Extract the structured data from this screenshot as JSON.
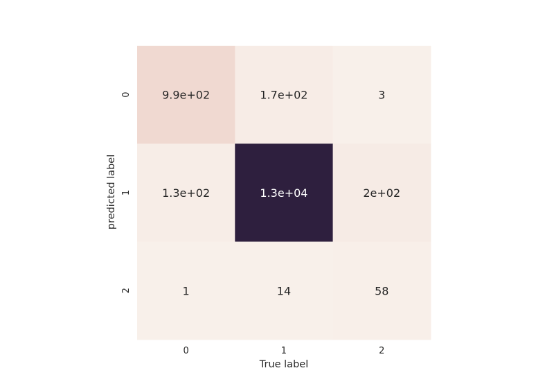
{
  "chart_data": {
    "type": "heatmap",
    "x_categories": [
      "0",
      "1",
      "2"
    ],
    "y_categories": [
      "0",
      "1",
      "2"
    ],
    "xlabel": "True label",
    "ylabel": "predicted label",
    "values": [
      [
        990,
        170,
        3
      ],
      [
        130,
        13000,
        200
      ],
      [
        1,
        14,
        58
      ]
    ],
    "value_labels": [
      [
        "9.9e+02",
        "1.7e+02",
        "3"
      ],
      [
        "1.3e+02",
        "1.3e+04",
        "2e+02"
      ],
      [
        "1",
        "14",
        "58"
      ]
    ],
    "colorscale": {
      "low": "#f8f0ea",
      "high": "#2e1f3e",
      "dark_text_on": "#262626",
      "light_text_on": "#ffffff"
    },
    "colorbar": false
  }
}
